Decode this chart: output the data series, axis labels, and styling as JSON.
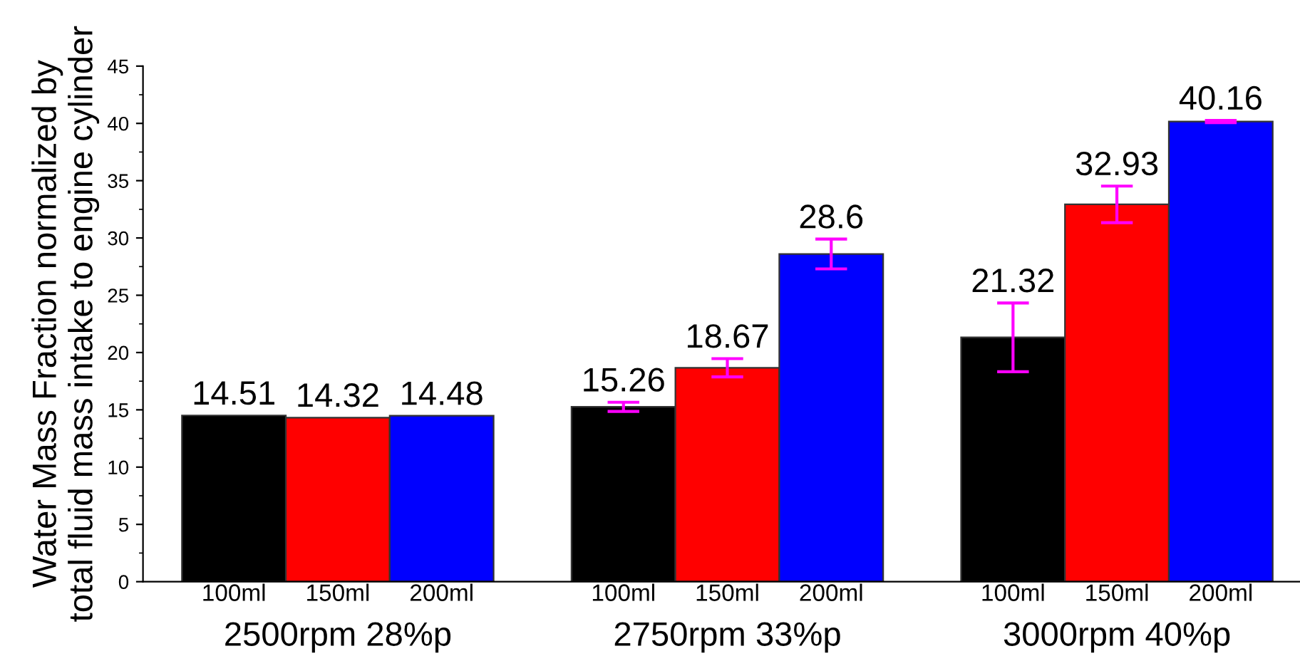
{
  "chart_data": {
    "type": "bar",
    "ylabel": "Water Mass Fraction normalized by\ntotal fluid mass intake to engine cylinder",
    "categories": [
      "2500rpm 28%p",
      "2750rpm 33%p",
      "3000rpm 40%p"
    ],
    "series": [
      {
        "name": "100ml",
        "color": "#000000",
        "values": [
          14.51,
          15.26,
          21.32
        ],
        "errors": [
          null,
          0.4,
          3.0
        ]
      },
      {
        "name": "150ml",
        "color": "#ff0000",
        "values": [
          14.32,
          18.67,
          32.93
        ],
        "errors": [
          null,
          0.8,
          1.6
        ]
      },
      {
        "name": "200ml",
        "color": "#0000ff",
        "values": [
          14.48,
          28.6,
          40.16
        ],
        "errors": [
          null,
          1.3,
          0.1
        ]
      }
    ],
    "ylim": [
      0,
      45
    ],
    "yticks": [
      0,
      5,
      10,
      15,
      20,
      25,
      30,
      35,
      40,
      45
    ],
    "data_labels": true,
    "grid": false,
    "legend": false
  }
}
